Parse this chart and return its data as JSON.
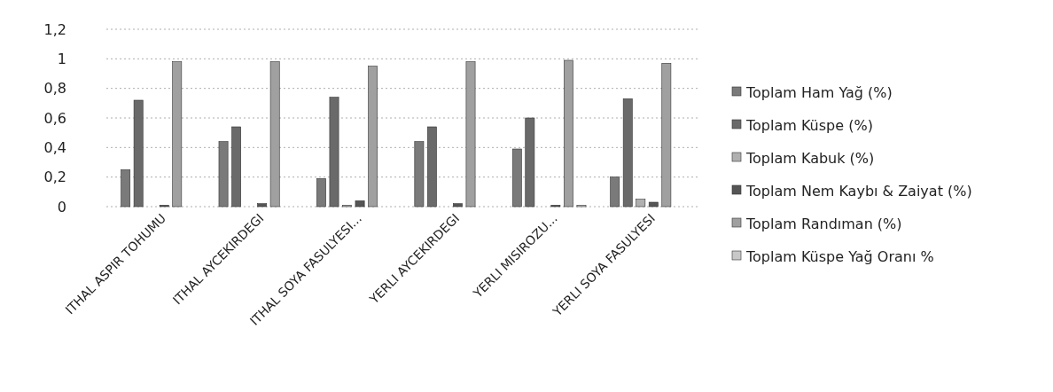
{
  "chart_data": {
    "type": "bar",
    "categories": [
      "ITHAL ASPIR TOHUMU",
      "ITHAL AYCEKIRDEGI",
      "ITHAL SOYA FASULYESI...",
      "YERLI AYCEKIRDEGI",
      "YERLI MISIROZU...",
      "YERLI SOYA FASULYESI"
    ],
    "series": [
      {
        "name": "Toplam Ham Yağ (%)",
        "color": "#7a7a7a",
        "values": [
          0.25,
          0.44,
          0.19,
          0.44,
          0.39,
          0.2
        ]
      },
      {
        "name": "Toplam Küspe (%)",
        "color": "#6a6a6a",
        "values": [
          0.72,
          0.54,
          0.74,
          0.54,
          0.6,
          0.73
        ]
      },
      {
        "name": "Toplam Kabuk (%)",
        "color": "#b0b0b0",
        "values": [
          0,
          0,
          0.01,
          0,
          0,
          0.05
        ]
      },
      {
        "name": "Toplam Nem Kaybı & Zaiyat (%)",
        "color": "#555555",
        "values": [
          0.01,
          0.02,
          0.04,
          0.02,
          0.01,
          0.03
        ]
      },
      {
        "name": "Toplam Randıman (%)",
        "color": "#a0a0a0",
        "values": [
          0.98,
          0.98,
          0.95,
          0.98,
          0.99,
          0.97
        ]
      },
      {
        "name": "Toplam Küspe Yağ Oranı %",
        "color": "#c8c8c8",
        "values": [
          0,
          0,
          0,
          0,
          0.01,
          0
        ]
      }
    ],
    "ylim": [
      0,
      1.2
    ],
    "yticks": [
      {
        "value": 0,
        "label": "0"
      },
      {
        "value": 0.2,
        "label": "0,2"
      },
      {
        "value": 0.4,
        "label": "0,4"
      },
      {
        "value": 0.6,
        "label": "0,6"
      },
      {
        "value": 0.8,
        "label": "0,8"
      },
      {
        "value": 1,
        "label": "1"
      },
      {
        "value": 1.2,
        "label": "1,2"
      }
    ],
    "grid": "y",
    "legend": "right"
  }
}
